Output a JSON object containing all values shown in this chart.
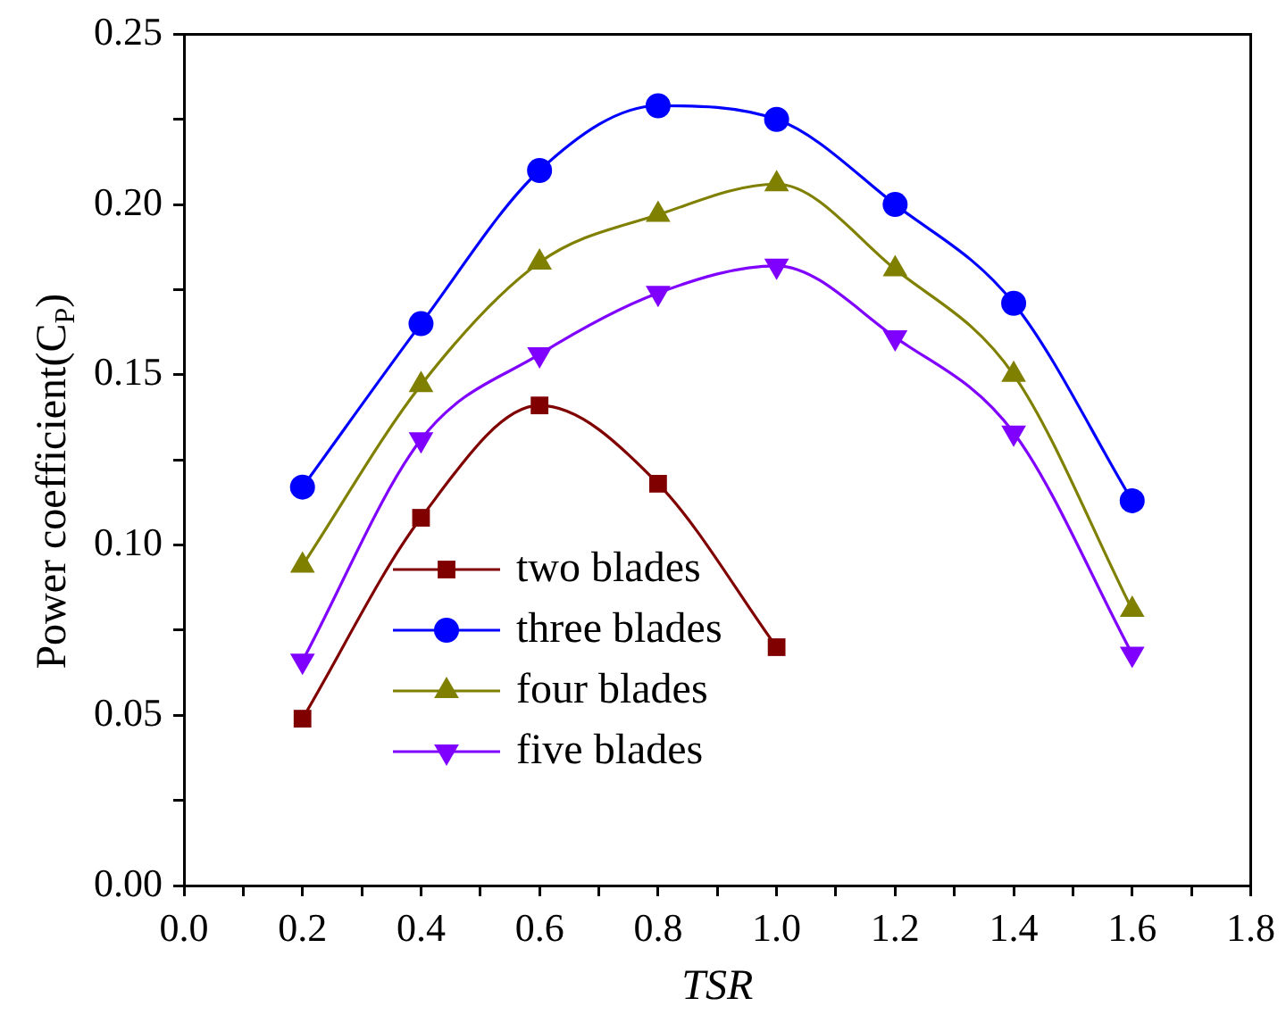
{
  "chart_data": {
    "type": "line",
    "xlabel": "TSR",
    "ylabel": "Power coefficient(C$_{P}$)",
    "xlim": [
      0,
      1.8
    ],
    "ylim": [
      0,
      0.25
    ],
    "xticks": [
      {
        "value": 0,
        "label": "0.0"
      },
      {
        "value": 0.1,
        "label": null
      },
      {
        "value": 0.2,
        "label": "0.2"
      },
      {
        "value": 0.3,
        "label": null
      },
      {
        "value": 0.4,
        "label": "0.4"
      },
      {
        "value": 0.5,
        "label": null
      },
      {
        "value": 0.6,
        "label": "0.6"
      },
      {
        "value": 0.7,
        "label": null
      },
      {
        "value": 0.8,
        "label": "0.8"
      },
      {
        "value": 0.9,
        "label": null
      },
      {
        "value": 1.0,
        "label": "1.0"
      },
      {
        "value": 1.1,
        "label": null
      },
      {
        "value": 1.2,
        "label": "1.2"
      },
      {
        "value": 1.3,
        "label": null
      },
      {
        "value": 1.4,
        "label": "1.4"
      },
      {
        "value": 1.5,
        "label": null
      },
      {
        "value": 1.6,
        "label": "1.6"
      },
      {
        "value": 1.7,
        "label": null
      },
      {
        "value": 1.8,
        "label": "1.8"
      }
    ],
    "yticks": [
      {
        "value": 0,
        "label": "0.00"
      },
      {
        "value": 0.025,
        "label": null
      },
      {
        "value": 0.05,
        "label": "0.05"
      },
      {
        "value": 0.075,
        "label": null
      },
      {
        "value": 0.1,
        "label": "0.10"
      },
      {
        "value": 0.125,
        "label": null
      },
      {
        "value": 0.15,
        "label": "0.15"
      },
      {
        "value": 0.175,
        "label": null
      },
      {
        "value": 0.2,
        "label": "0.20"
      },
      {
        "value": 0.225,
        "label": null
      },
      {
        "value": 0.25,
        "label": "0.25"
      }
    ],
    "grid": false,
    "legend": "bottom left",
    "line_style": "solid",
    "series": [
      {
        "name": "two blades",
        "color": "#800000",
        "marker": "square",
        "x": [
          0.2,
          0.4,
          0.6,
          0.8,
          1.0
        ],
        "values": [
          0.049,
          0.108,
          0.141,
          0.118,
          0.07
        ]
      },
      {
        "name": "three blades",
        "color": "#0000ff",
        "marker": "circle",
        "x": [
          0.2,
          0.4,
          0.6,
          0.8,
          1.0,
          1.2,
          1.4,
          1.6
        ],
        "values": [
          0.117,
          0.165,
          0.21,
          0.229,
          0.225,
          0.2,
          0.171,
          0.113
        ]
      },
      {
        "name": "four blades",
        "color": "#808000",
        "marker": "triangle",
        "x": [
          0.2,
          0.4,
          0.6,
          0.8,
          1.0,
          1.2,
          1.4,
          1.6
        ],
        "values": [
          0.094,
          0.147,
          0.183,
          0.197,
          0.206,
          0.181,
          0.15,
          0.081
        ]
      },
      {
        "name": "five blades",
        "color": "#8000ff",
        "marker": "triangle-down",
        "x": [
          0.2,
          0.4,
          0.6,
          0.8,
          1.0,
          1.2,
          1.4,
          1.6
        ],
        "values": [
          0.066,
          0.131,
          0.156,
          0.174,
          0.182,
          0.161,
          0.133,
          0.068
        ]
      }
    ]
  }
}
